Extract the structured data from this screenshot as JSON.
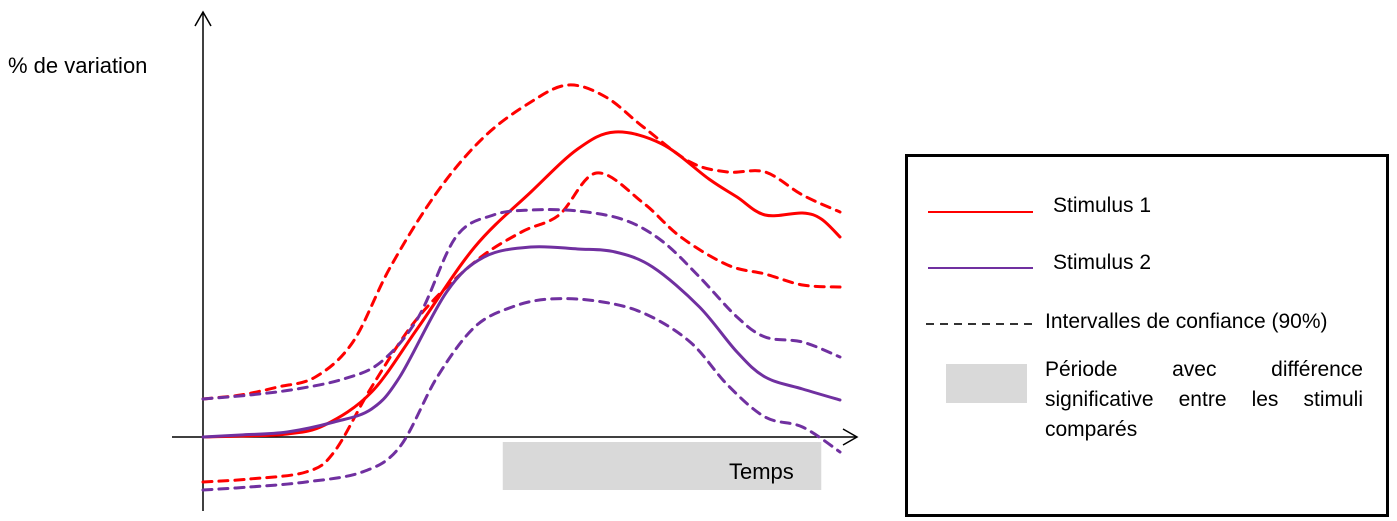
{
  "chart_data": {
    "type": "line",
    "ylabel": "% de variation",
    "xlabel": "Temps",
    "grid": false,
    "legend_placement": "right",
    "colors": {
      "stimulus1": "#ff0000",
      "stimulus2": "#7030a0",
      "shade": "#d9d9d9"
    },
    "series": [
      {
        "name": "Stimulus 1",
        "style": "solid",
        "color": "#ff0000",
        "points": [
          [
            0,
            0
          ],
          [
            40,
            1
          ],
          [
            90,
            3
          ],
          [
            130,
            12
          ],
          [
            180,
            45
          ],
          [
            230,
            110
          ],
          [
            290,
            190
          ],
          [
            350,
            245
          ],
          [
            400,
            288
          ],
          [
            440,
            305
          ],
          [
            490,
            293
          ],
          [
            540,
            258
          ],
          [
            570,
            240
          ],
          [
            600,
            222
          ],
          [
            640,
            224
          ],
          [
            660,
            218
          ],
          [
            680,
            200
          ]
        ]
      },
      {
        "name": "Stimulus 1 upper",
        "style": "dashed",
        "color": "#ff0000",
        "points": [
          [
            0,
            38
          ],
          [
            40,
            42
          ],
          [
            80,
            50
          ],
          [
            120,
            60
          ],
          [
            160,
            95
          ],
          [
            200,
            170
          ],
          [
            250,
            245
          ],
          [
            300,
            300
          ],
          [
            350,
            335
          ],
          [
            390,
            352
          ],
          [
            430,
            340
          ],
          [
            470,
            310
          ],
          [
            520,
            275
          ],
          [
            560,
            265
          ],
          [
            600,
            265
          ],
          [
            640,
            242
          ],
          [
            680,
            225
          ]
        ]
      },
      {
        "name": "Stimulus 1 lower",
        "style": "dashed",
        "color": "#ff0000",
        "points": [
          [
            0,
            -45
          ],
          [
            50,
            -42
          ],
          [
            110,
            -35
          ],
          [
            140,
            -15
          ],
          [
            180,
            50
          ],
          [
            230,
            120
          ],
          [
            290,
            175
          ],
          [
            340,
            205
          ],
          [
            380,
            222
          ],
          [
            420,
            264
          ],
          [
            470,
            234
          ],
          [
            510,
            200
          ],
          [
            560,
            172
          ],
          [
            600,
            163
          ],
          [
            640,
            152
          ],
          [
            680,
            150
          ]
        ]
      },
      {
        "name": "Stimulus 2",
        "style": "solid",
        "color": "#7030a0",
        "points": [
          [
            0,
            0
          ],
          [
            40,
            2
          ],
          [
            90,
            5
          ],
          [
            140,
            15
          ],
          [
            180,
            28
          ],
          [
            210,
            60
          ],
          [
            260,
            145
          ],
          [
            300,
            180
          ],
          [
            350,
            190
          ],
          [
            400,
            188
          ],
          [
            440,
            185
          ],
          [
            480,
            170
          ],
          [
            530,
            130
          ],
          [
            570,
            85
          ],
          [
            600,
            60
          ],
          [
            640,
            48
          ],
          [
            680,
            37
          ]
        ]
      },
      {
        "name": "Stimulus 2 upper",
        "style": "dashed",
        "color": "#7030a0",
        "points": [
          [
            0,
            38
          ],
          [
            50,
            42
          ],
          [
            100,
            48
          ],
          [
            150,
            58
          ],
          [
            190,
            75
          ],
          [
            230,
            120
          ],
          [
            270,
            200
          ],
          [
            310,
            222
          ],
          [
            350,
            227
          ],
          [
            400,
            226
          ],
          [
            450,
            217
          ],
          [
            490,
            196
          ],
          [
            530,
            160
          ],
          [
            570,
            120
          ],
          [
            600,
            100
          ],
          [
            640,
            95
          ],
          [
            680,
            80
          ]
        ]
      },
      {
        "name": "Stimulus 2 lower",
        "style": "dashed",
        "color": "#7030a0",
        "points": [
          [
            0,
            -53
          ],
          [
            50,
            -50
          ],
          [
            110,
            -45
          ],
          [
            170,
            -35
          ],
          [
            210,
            -10
          ],
          [
            250,
            60
          ],
          [
            290,
            110
          ],
          [
            330,
            130
          ],
          [
            370,
            138
          ],
          [
            420,
            136
          ],
          [
            470,
            124
          ],
          [
            520,
            95
          ],
          [
            560,
            52
          ],
          [
            600,
            20
          ],
          [
            640,
            10
          ],
          [
            680,
            -15
          ]
        ]
      }
    ],
    "shaded_region": {
      "x_start": 320,
      "x_end": 660
    },
    "xlim": [
      0,
      680
    ],
    "ylim": [
      -70,
      380
    ]
  },
  "legend": {
    "items": [
      {
        "label": "Stimulus 1",
        "kind": "solid",
        "color": "#ff0000"
      },
      {
        "label": "Stimulus 2",
        "kind": "solid",
        "color": "#7030a0"
      },
      {
        "label": "Intervalles de confiance (90%)",
        "kind": "dashed",
        "color": "#333333"
      },
      {
        "label_line1": "Période avec différence",
        "label_line2": "significative entre les stimuli",
        "label_line3": "comparés",
        "kind": "box",
        "color": "#d9d9d9"
      }
    ]
  }
}
